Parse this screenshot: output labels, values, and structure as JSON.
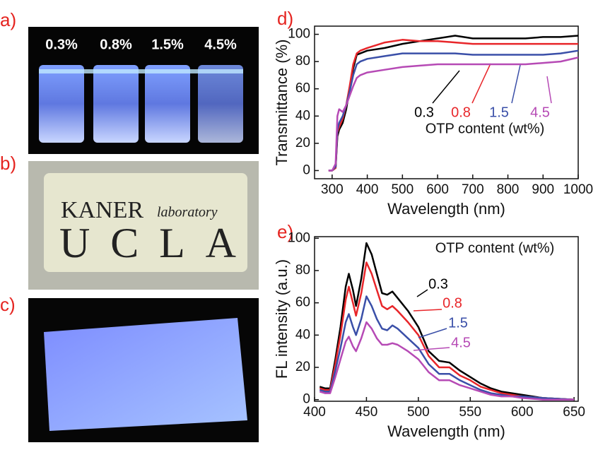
{
  "panels": {
    "labels": [
      "a)",
      "b)",
      "c)",
      "d)",
      "e)"
    ],
    "vials": [
      "0.3%",
      "0.8%",
      "1.5%",
      "4.5%"
    ],
    "film_text": [
      "KANER",
      "laboratory",
      "UCLA"
    ]
  },
  "chart_data": [
    {
      "type": "line",
      "xlabel": "Wavelength (nm)",
      "ylabel": "Transmittance (%)",
      "legend_title": "OTP content (wt%)",
      "x": [
        290,
        300,
        310,
        315,
        320,
        330,
        340,
        350,
        360,
        370,
        380,
        400,
        450,
        500,
        550,
        600,
        650,
        700,
        750,
        800,
        850,
        900,
        950,
        1000
      ],
      "series": [
        {
          "name": "0.3",
          "color": "#000000",
          "values": [
            0,
            0,
            2,
            25,
            30,
            35,
            45,
            60,
            75,
            85,
            86,
            88,
            90,
            93,
            95,
            97,
            99,
            97,
            97,
            97,
            97,
            98,
            98,
            99
          ]
        },
        {
          "name": "0.8",
          "color": "#e8262a",
          "values": [
            0,
            0,
            2,
            28,
            32,
            38,
            48,
            62,
            78,
            86,
            88,
            90,
            94,
            96,
            95,
            95,
            94,
            93,
            93,
            93,
            93,
            93,
            93,
            93
          ]
        },
        {
          "name": "1.5",
          "color": "#3a4fa8",
          "values": [
            0,
            0,
            3,
            30,
            35,
            40,
            48,
            58,
            70,
            78,
            80,
            82,
            84,
            86,
            86,
            86,
            86,
            85,
            85,
            85,
            85,
            85,
            86,
            88
          ]
        },
        {
          "name": "4.5",
          "color": "#b64ab5",
          "values": [
            0,
            0,
            5,
            40,
            45,
            43,
            48,
            55,
            62,
            68,
            70,
            72,
            74,
            76,
            77,
            78,
            78,
            78,
            78,
            78,
            78,
            79,
            80,
            83
          ]
        }
      ],
      "xlim": [
        250,
        1000
      ],
      "xticks": [
        300,
        400,
        500,
        600,
        700,
        800,
        900,
        1000
      ],
      "ylim": [
        -6,
        106
      ],
      "yticks": [
        0,
        20,
        40,
        60,
        80,
        100
      ]
    },
    {
      "type": "line",
      "xlabel": "Wavelength (nm)",
      "ylabel": "FL intensity (a.u.)",
      "legend_title": "OTP content (wt%)",
      "x": [
        405,
        410,
        415,
        420,
        425,
        430,
        433,
        437,
        440,
        445,
        450,
        455,
        460,
        465,
        470,
        475,
        480,
        490,
        500,
        510,
        520,
        530,
        540,
        550,
        560,
        570,
        580,
        590,
        600,
        620,
        650
      ],
      "series": [
        {
          "name": "0.3",
          "color": "#000000",
          "values": [
            8,
            7,
            7,
            25,
            45,
            70,
            78,
            68,
            58,
            75,
            97,
            90,
            78,
            66,
            65,
            67,
            63,
            55,
            45,
            30,
            24,
            23,
            18,
            14,
            10,
            7,
            5,
            4,
            3,
            1,
            0
          ]
        },
        {
          "name": "0.8",
          "color": "#e8262a",
          "values": [
            7,
            6,
            6,
            22,
            40,
            62,
            70,
            60,
            52,
            66,
            85,
            78,
            68,
            58,
            56,
            58,
            55,
            48,
            40,
            27,
            20,
            20,
            15,
            12,
            8,
            6,
            4,
            3,
            2,
            1,
            0
          ]
        },
        {
          "name": "1.5",
          "color": "#3a4fa8",
          "values": [
            6,
            5,
            5,
            18,
            32,
            48,
            53,
            45,
            40,
            50,
            64,
            58,
            50,
            44,
            43,
            46,
            44,
            38,
            32,
            22,
            16,
            16,
            12,
            9,
            6,
            4,
            3,
            2,
            2,
            1,
            0
          ]
        },
        {
          "name": "4.5",
          "color": "#b64ab5",
          "values": [
            5,
            4,
            4,
            14,
            25,
            36,
            39,
            33,
            30,
            38,
            48,
            44,
            38,
            34,
            34,
            35,
            34,
            30,
            25,
            17,
            12,
            12,
            9,
            7,
            5,
            3,
            2,
            2,
            1,
            0,
            0
          ]
        }
      ],
      "xlim": [
        400,
        654
      ],
      "xticks": [
        400,
        450,
        500,
        550,
        600,
        650
      ],
      "ylim": [
        -1,
        101
      ],
      "yticks": [
        0,
        20,
        40,
        60,
        80,
        100
      ]
    }
  ]
}
